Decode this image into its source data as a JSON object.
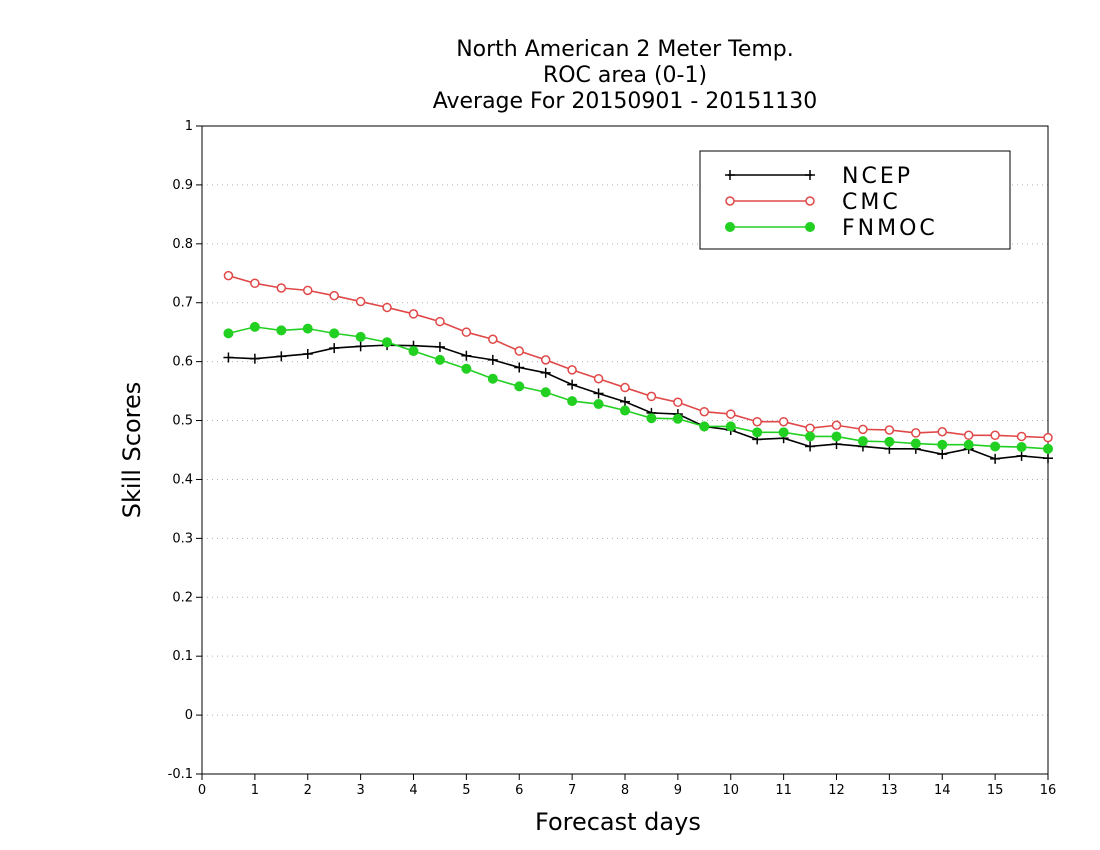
{
  "chart_data": {
    "type": "line",
    "title": [
      "North American 2 Meter Temp.",
      "ROC area (0-1)",
      "Average For 20150901 - 20151130"
    ],
    "xlabel": "Forecast days",
    "ylabel": "Skill Scores",
    "xlim": [
      0,
      16
    ],
    "ylim": [
      -0.1,
      1
    ],
    "xticks": [
      0,
      1,
      2,
      3,
      4,
      5,
      6,
      7,
      8,
      9,
      10,
      11,
      12,
      13,
      14,
      15,
      16
    ],
    "yticks": [
      -0.1,
      0,
      0.1,
      0.2,
      0.3,
      0.4,
      0.5,
      0.6,
      0.7,
      0.8,
      0.9,
      1
    ],
    "ytick_labels": [
      "-0.1",
      "0",
      "0.1",
      "0.2",
      "0.3",
      "0.4",
      "0.5",
      "0.6",
      "0.7",
      "0.8",
      "0.9",
      "1"
    ],
    "grid": "horizontal dotted",
    "legend_position": "top-right",
    "x": [
      0.5,
      1,
      1.5,
      2,
      2.5,
      3,
      3.5,
      4,
      4.5,
      5,
      5.5,
      6,
      6.5,
      7,
      7.5,
      8,
      8.5,
      9,
      9.5,
      10,
      10.5,
      11,
      11.5,
      12,
      12.5,
      13,
      13.5,
      14,
      14.5,
      15,
      15.5,
      16
    ],
    "series": [
      {
        "name": "NCEP",
        "color": "#000000",
        "marker": "plus",
        "values": [
          0.607,
          0.605,
          0.609,
          0.613,
          0.623,
          0.626,
          0.628,
          0.627,
          0.625,
          0.61,
          0.603,
          0.59,
          0.581,
          0.561,
          0.546,
          0.532,
          0.513,
          0.511,
          0.49,
          0.484,
          0.468,
          0.47,
          0.456,
          0.46,
          0.456,
          0.452,
          0.452,
          0.443,
          0.452,
          0.435,
          0.44,
          0.436
        ]
      },
      {
        "name": "CMC",
        "color": "#e04848",
        "marker": "open-circle",
        "values": [
          0.746,
          0.733,
          0.725,
          0.721,
          0.712,
          0.702,
          0.692,
          0.681,
          0.668,
          0.65,
          0.638,
          0.618,
          0.603,
          0.586,
          0.571,
          0.556,
          0.541,
          0.531,
          0.515,
          0.511,
          0.498,
          0.498,
          0.487,
          0.492,
          0.485,
          0.484,
          0.479,
          0.481,
          0.475,
          0.475,
          0.473,
          0.471
        ]
      },
      {
        "name": "FNMOC",
        "color": "#22d022",
        "marker": "filled-circle",
        "values": [
          0.648,
          0.659,
          0.653,
          0.656,
          0.648,
          0.642,
          0.633,
          0.618,
          0.603,
          0.588,
          0.571,
          0.558,
          0.548,
          0.533,
          0.528,
          0.517,
          0.504,
          0.503,
          0.49,
          0.49,
          0.48,
          0.48,
          0.473,
          0.473,
          0.465,
          0.464,
          0.461,
          0.459,
          0.459,
          0.456,
          0.455,
          0.452
        ]
      }
    ]
  }
}
